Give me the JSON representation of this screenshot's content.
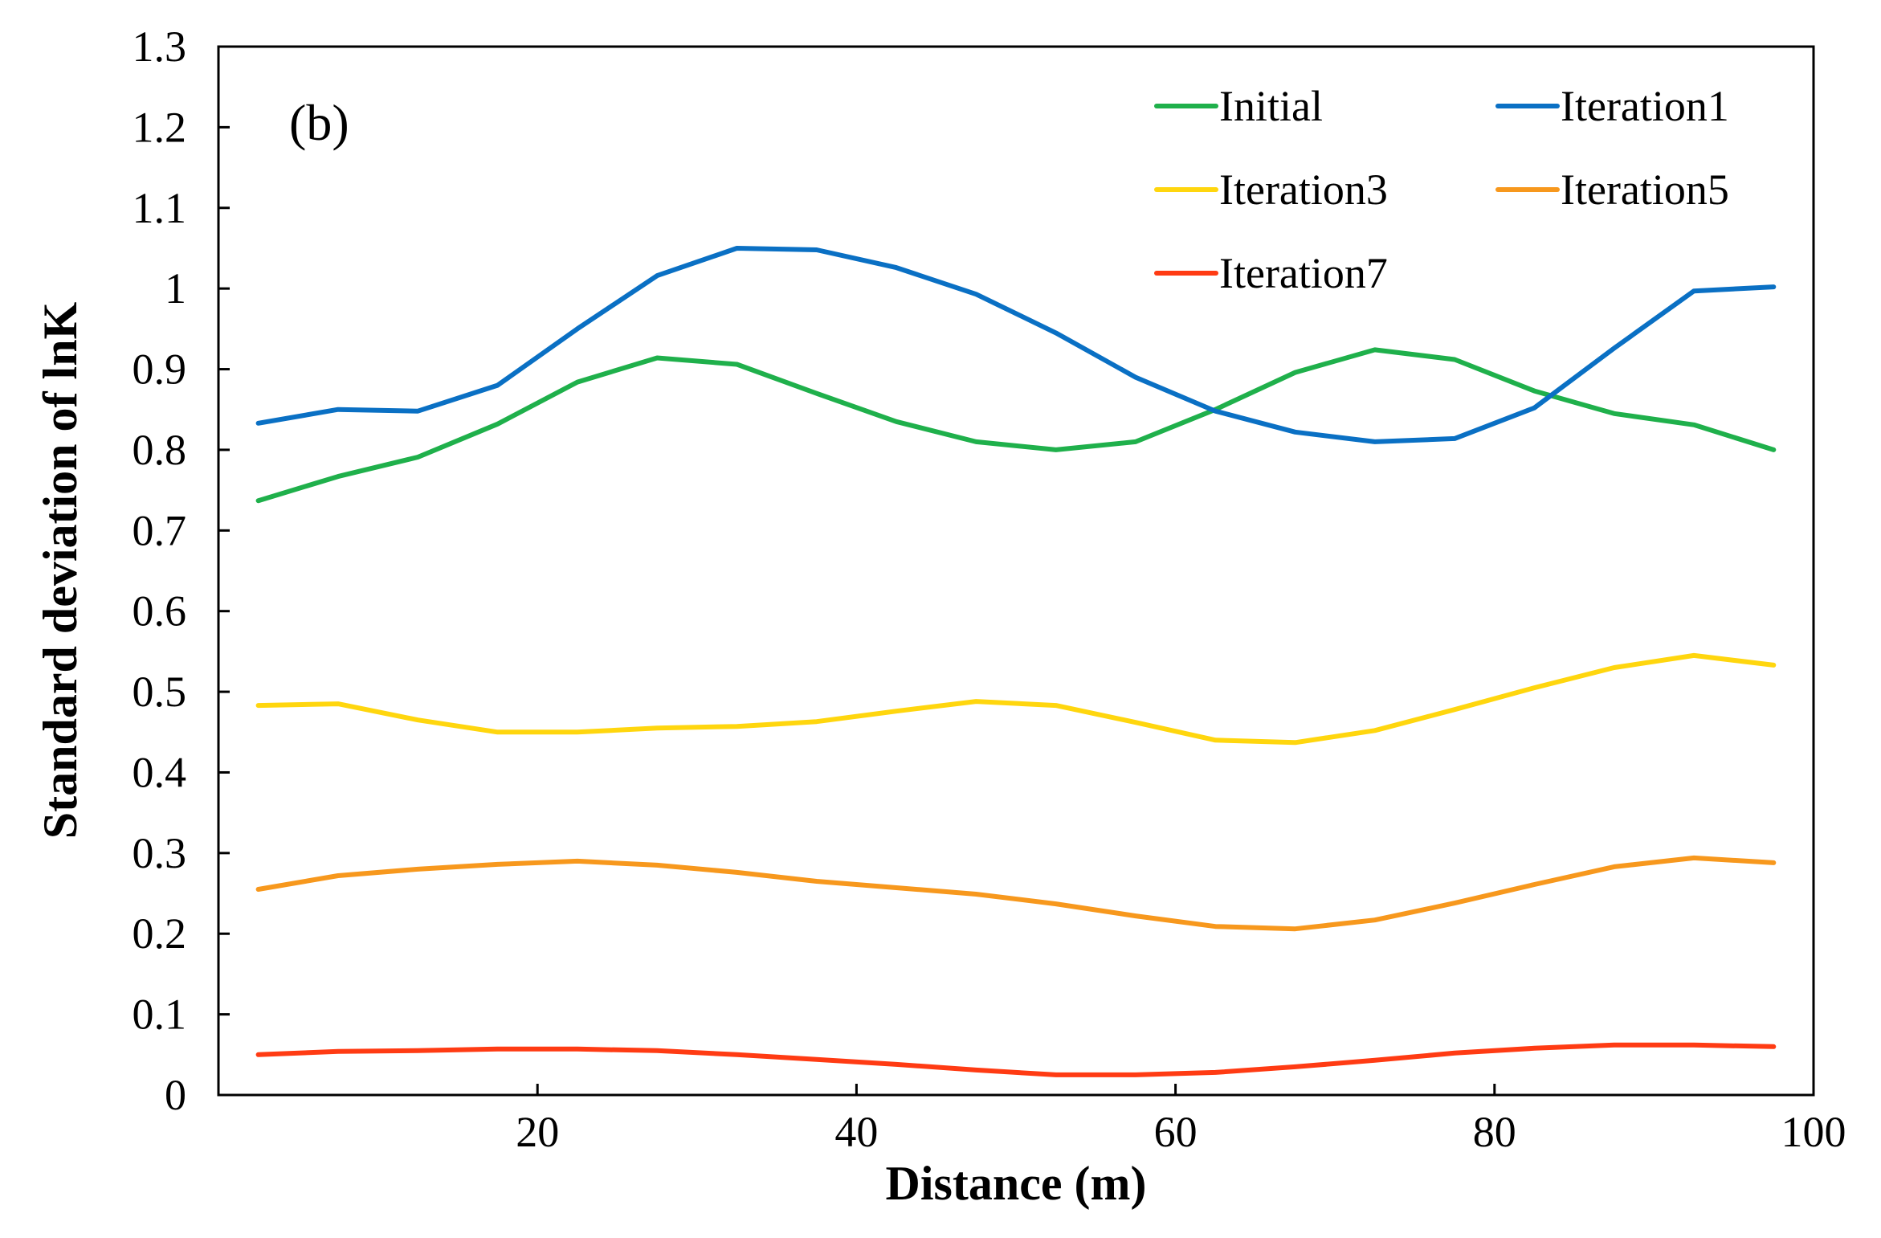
{
  "chart_data": {
    "type": "line",
    "panel_label": "(b)",
    "xlabel": "Distance (m)",
    "ylabel": "Standard deviation of lnK",
    "xlim": [
      0,
      100
    ],
    "ylim": [
      0,
      1.3
    ],
    "xticks": [
      20,
      40,
      60,
      80,
      100
    ],
    "xtick_labels": [
      "20",
      "40",
      "60",
      "80",
      "100"
    ],
    "yticks": [
      0,
      0.1,
      0.2,
      0.3,
      0.4,
      0.5,
      0.6,
      0.7,
      0.8,
      0.9,
      1.0,
      1.1,
      1.2,
      1.3
    ],
    "ytick_labels": [
      "0",
      "0.1",
      "0.2",
      "0.3",
      "0.4",
      "0.5",
      "0.6",
      "0.7",
      "0.8",
      "0.9",
      "1",
      "1.1",
      "1.2",
      "1.3"
    ],
    "grid": false,
    "legend_position": "top-right",
    "x": [
      2.5,
      7.5,
      12.5,
      17.5,
      22.5,
      27.5,
      32.5,
      37.5,
      42.5,
      47.5,
      52.5,
      57.5,
      62.5,
      67.5,
      72.5,
      77.5,
      82.5,
      87.5,
      92.5,
      97.5
    ],
    "series": [
      {
        "name": "Initial",
        "color": "#1fb04b",
        "values": [
          0.737,
          0.767,
          0.791,
          0.832,
          0.884,
          0.914,
          0.906,
          0.87,
          0.835,
          0.81,
          0.8,
          0.81,
          0.85,
          0.896,
          0.924,
          0.912,
          0.873,
          0.845,
          0.831,
          0.8
        ]
      },
      {
        "name": "Iteration1",
        "color": "#0a70c4",
        "values": [
          0.833,
          0.85,
          0.848,
          0.88,
          0.95,
          1.016,
          1.05,
          1.048,
          1.026,
          0.993,
          0.945,
          0.89,
          0.848,
          0.822,
          0.81,
          0.814,
          0.852,
          0.926,
          0.997,
          1.002
        ]
      },
      {
        "name": "Iteration3",
        "color": "#ffd60e",
        "values": [
          0.483,
          0.485,
          0.465,
          0.45,
          0.45,
          0.455,
          0.457,
          0.463,
          0.476,
          0.488,
          0.483,
          0.462,
          0.44,
          0.437,
          0.452,
          0.478,
          0.505,
          0.53,
          0.545,
          0.533
        ]
      },
      {
        "name": "Iteration5",
        "color": "#f7981d",
        "values": [
          0.255,
          0.272,
          0.28,
          0.286,
          0.29,
          0.285,
          0.276,
          0.265,
          0.257,
          0.249,
          0.237,
          0.222,
          0.209,
          0.206,
          0.217,
          0.238,
          0.261,
          0.283,
          0.294,
          0.288
        ]
      },
      {
        "name": "Iteration7",
        "color": "#ff3b13",
        "values": [
          0.05,
          0.054,
          0.055,
          0.057,
          0.057,
          0.055,
          0.05,
          0.044,
          0.038,
          0.031,
          0.025,
          0.025,
          0.028,
          0.035,
          0.043,
          0.052,
          0.058,
          0.062,
          0.062,
          0.06
        ]
      }
    ]
  }
}
